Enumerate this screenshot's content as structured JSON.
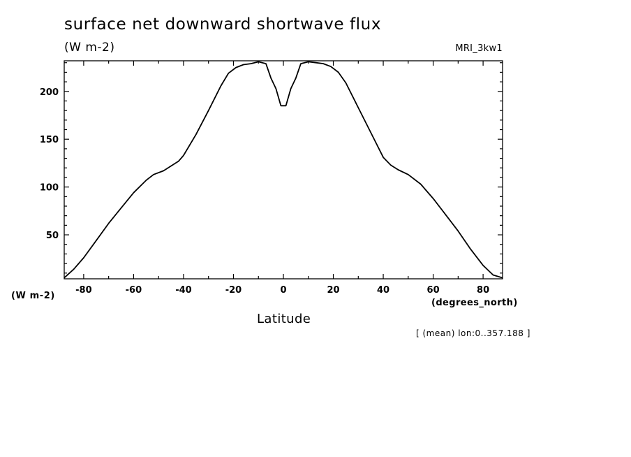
{
  "header": {
    "title": "surface net downward shortwave flux",
    "units": "(W m-2)",
    "model": "MRI_3kw1"
  },
  "footer": {
    "y_units_label": "(W m-2)",
    "x_units_label": "(degrees_north)",
    "x_axis_label": "Latitude",
    "averaging_note": "[ (mean) lon:0..357.188 ]"
  },
  "chart_data": {
    "type": "line",
    "title": "surface net downward shortwave flux",
    "xlabel": "Latitude",
    "ylabel": "(W m-2)",
    "xlim": [
      -87.8,
      87.8
    ],
    "ylim": [
      4,
      232
    ],
    "x_ticks": [
      -80,
      -60,
      -40,
      -20,
      0,
      20,
      40,
      60,
      80
    ],
    "x_tick_labels": [
      "-80",
      "-60",
      "-40",
      "-20",
      "0",
      "20",
      "40",
      "60",
      "80"
    ],
    "y_ticks": [
      50,
      100,
      150,
      200
    ],
    "y_tick_labels": [
      "50",
      "100",
      "150",
      "200"
    ],
    "grid": false,
    "series": [
      {
        "x": [
          -87.8,
          -84,
          -80,
          -75,
          -70,
          -65,
          -60,
          -55,
          -52,
          -48,
          -45,
          -42,
          -40,
          -35,
          -30,
          -25,
          -22,
          -19,
          -16,
          -13,
          -10,
          -7,
          -5,
          -3,
          -1,
          1,
          3,
          5,
          7,
          10,
          13,
          16,
          19,
          22,
          25,
          30,
          35,
          40,
          43,
          46,
          50,
          55,
          60,
          65,
          70,
          75,
          80,
          84,
          87.8
        ],
        "y": [
          5,
          14,
          26,
          44,
          62,
          78,
          94,
          107,
          113,
          117,
          122,
          127,
          133,
          155,
          180,
          206,
          219,
          225,
          228,
          229,
          231,
          229,
          214,
          203,
          185,
          185,
          203,
          214,
          229,
          231,
          230,
          229,
          226,
          220,
          209,
          183,
          157,
          131,
          123,
          118,
          113,
          103,
          88,
          71,
          54,
          35,
          18,
          8,
          5
        ]
      }
    ]
  }
}
